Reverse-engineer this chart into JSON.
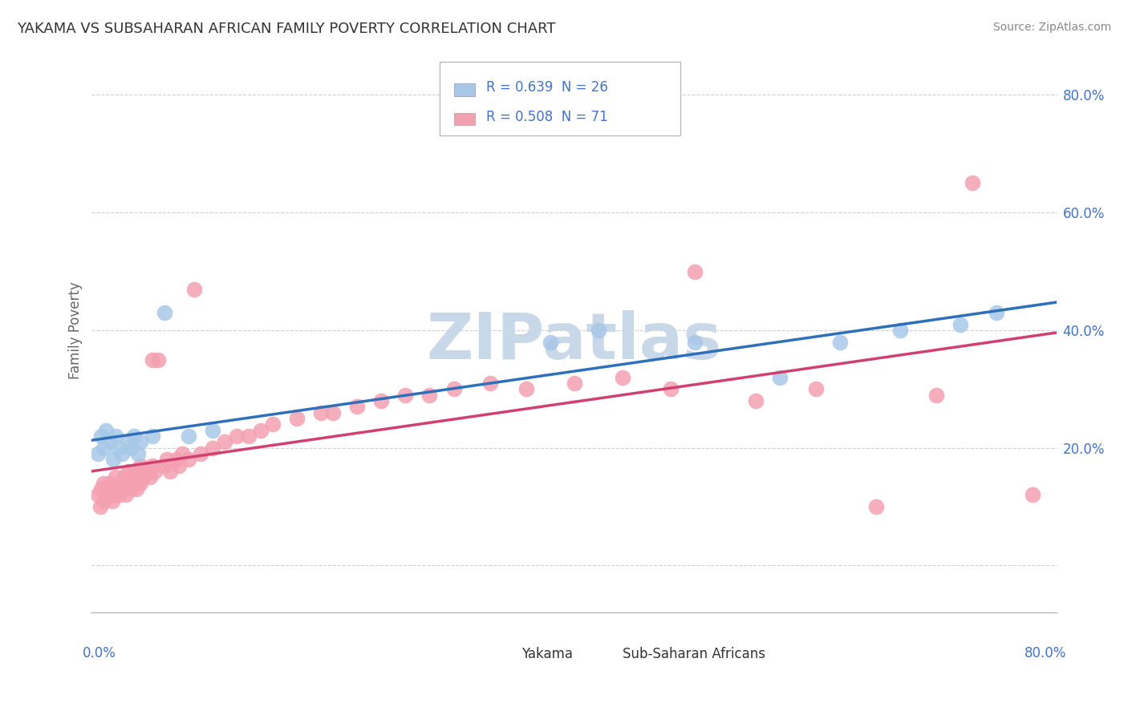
{
  "title": "YAKAMA VS SUBSAHARAN AFRICAN FAMILY POVERTY CORRELATION CHART",
  "source": "Source: ZipAtlas.com",
  "ylabel": "Family Poverty",
  "xlim": [
    0.0,
    0.8
  ],
  "ylim": [
    -0.08,
    0.88
  ],
  "y_ticks": [
    0.0,
    0.2,
    0.4,
    0.6,
    0.8
  ],
  "y_tick_labels": [
    "",
    "20.0%",
    "40.0%",
    "60.0%",
    "80.0%"
  ],
  "yakama_color": "#a8c8e8",
  "subsaharan_color": "#f4a0b0",
  "yakama_line_color": "#3070b8",
  "subsaharan_line_color": "#d04070",
  "legend_yakama_color": "#a8c8e8",
  "legend_subsaharan_color": "#f4a0b0",
  "legend_text_color": "#4472c4",
  "tick_color": "#4472c4",
  "watermark_color": "#c8d8e8",
  "grid_color": "#d0d0d0",
  "background_color": "#ffffff",
  "title_color": "#333333",
  "source_color": "#888888",
  "yakama_R": 0.639,
  "yakama_N": 26,
  "subsaharan_R": 0.508,
  "subsaharan_N": 71,
  "yakama_x": [
    0.005,
    0.008,
    0.01,
    0.012,
    0.015,
    0.018,
    0.02,
    0.022,
    0.025,
    0.03,
    0.032,
    0.035,
    0.038,
    0.04,
    0.05,
    0.06,
    0.08,
    0.1,
    0.38,
    0.42,
    0.5,
    0.57,
    0.62,
    0.67,
    0.72,
    0.75
  ],
  "yakama_y": [
    0.19,
    0.22,
    0.2,
    0.23,
    0.21,
    0.18,
    0.22,
    0.2,
    0.19,
    0.21,
    0.2,
    0.22,
    0.19,
    0.21,
    0.22,
    0.43,
    0.22,
    0.23,
    0.38,
    0.4,
    0.38,
    0.32,
    0.38,
    0.4,
    0.41,
    0.43
  ],
  "subsaharan_x": [
    0.005,
    0.007,
    0.008,
    0.01,
    0.01,
    0.012,
    0.013,
    0.015,
    0.015,
    0.017,
    0.018,
    0.02,
    0.02,
    0.022,
    0.023,
    0.025,
    0.025,
    0.027,
    0.028,
    0.03,
    0.03,
    0.032,
    0.033,
    0.035,
    0.035,
    0.037,
    0.038,
    0.04,
    0.04,
    0.042,
    0.045,
    0.048,
    0.05,
    0.05,
    0.052,
    0.055,
    0.06,
    0.062,
    0.065,
    0.07,
    0.072,
    0.075,
    0.08,
    0.085,
    0.09,
    0.1,
    0.11,
    0.12,
    0.13,
    0.14,
    0.15,
    0.17,
    0.19,
    0.2,
    0.22,
    0.24,
    0.26,
    0.28,
    0.3,
    0.33,
    0.36,
    0.4,
    0.44,
    0.48,
    0.5,
    0.55,
    0.6,
    0.65,
    0.7,
    0.73,
    0.78
  ],
  "subsaharan_y": [
    0.12,
    0.1,
    0.13,
    0.14,
    0.11,
    0.12,
    0.13,
    0.12,
    0.14,
    0.11,
    0.13,
    0.12,
    0.15,
    0.13,
    0.12,
    0.14,
    0.13,
    0.15,
    0.12,
    0.14,
    0.16,
    0.13,
    0.15,
    0.14,
    0.16,
    0.13,
    0.15,
    0.14,
    0.17,
    0.15,
    0.16,
    0.15,
    0.17,
    0.35,
    0.16,
    0.35,
    0.17,
    0.18,
    0.16,
    0.18,
    0.17,
    0.19,
    0.18,
    0.47,
    0.19,
    0.2,
    0.21,
    0.22,
    0.22,
    0.23,
    0.24,
    0.25,
    0.26,
    0.26,
    0.27,
    0.28,
    0.29,
    0.29,
    0.3,
    0.31,
    0.3,
    0.31,
    0.32,
    0.3,
    0.5,
    0.28,
    0.3,
    0.1,
    0.29,
    0.65,
    0.12
  ]
}
